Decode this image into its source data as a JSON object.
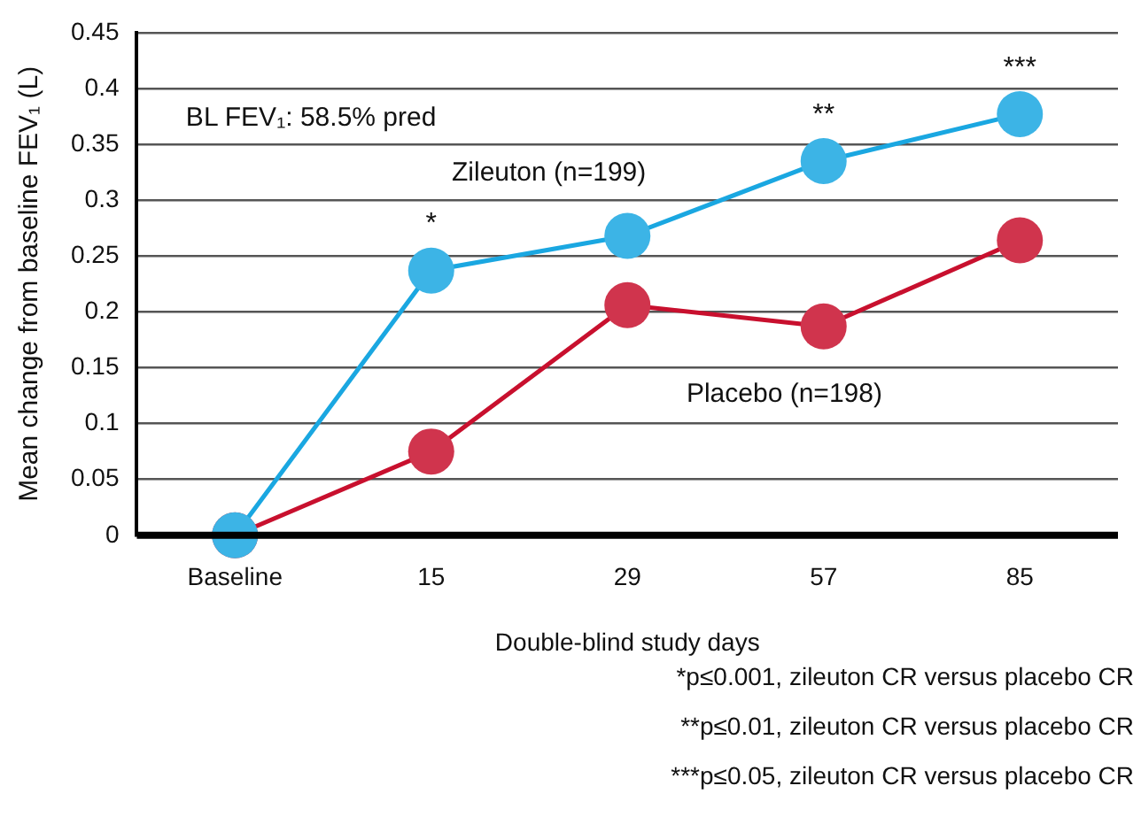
{
  "chart_data": {
    "type": "line",
    "xlabel": "Double-blind study days",
    "ylabel": "Mean change from baseline FEV₁ (L)",
    "categories": [
      "Baseline",
      "15",
      "29",
      "57",
      "85"
    ],
    "series": [
      {
        "name": "Zileuton (n=199)",
        "color": "#1aa7e1",
        "values": [
          0,
          0.237,
          0.268,
          0.335,
          0.377
        ]
      },
      {
        "name": "Placebo (n=198)",
        "color": "#c8102e",
        "values": [
          0,
          0.075,
          0.206,
          0.187,
          0.264
        ]
      }
    ],
    "ylim": [
      0,
      0.45
    ],
    "yticks": [
      0,
      0.05,
      0.1,
      0.15,
      0.2,
      0.25,
      0.3,
      0.35,
      0.4,
      0.45
    ],
    "grid": "y",
    "legend": false,
    "marker": "circle",
    "line_style": "solid",
    "annotations": [
      "BL FEV₁: 58.5% pred",
      {
        "text": "*",
        "x": "15",
        "y": 0.237
      },
      {
        "text": "**",
        "x": "57",
        "y": 0.335
      },
      {
        "text": "***",
        "x": "85",
        "y": 0.377
      },
      "*p≤0.001, zileuton CR versus placebo CR",
      "**p≤0.01, zileuton CR versus placebo CR",
      "***p≤0.05, zileuton CR versus placebo CR"
    ]
  }
}
